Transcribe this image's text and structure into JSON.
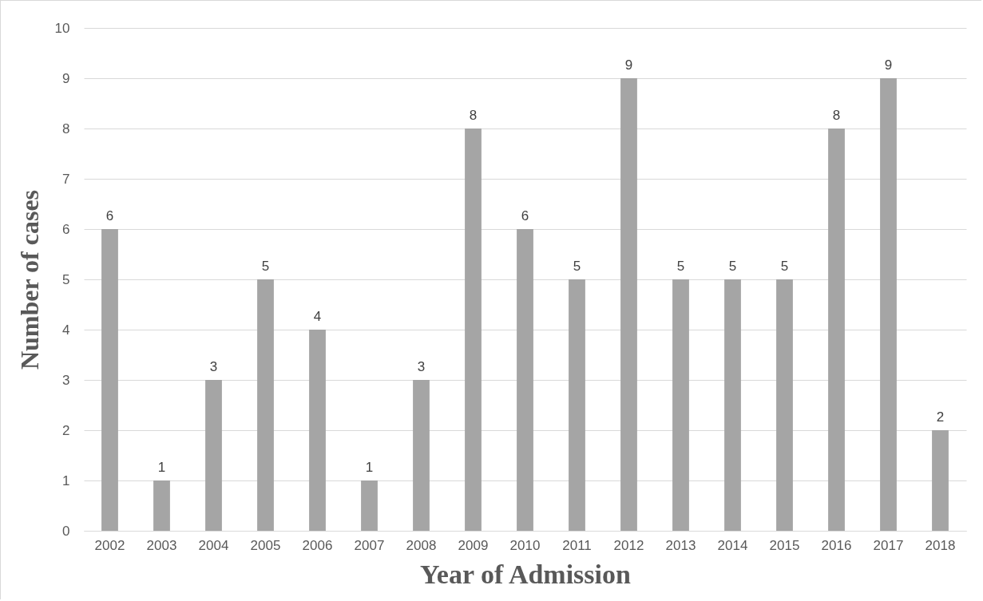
{
  "chart_data": {
    "type": "bar",
    "xlabel": "Year of Admission",
    "ylabel": "Number of cases",
    "categories": [
      "2002",
      "2003",
      "2004",
      "2005",
      "2006",
      "2007",
      "2008",
      "2009",
      "2010",
      "2011",
      "2012",
      "2013",
      "2014",
      "2015",
      "2016",
      "2017",
      "2018"
    ],
    "values": [
      6,
      1,
      3,
      5,
      4,
      1,
      3,
      8,
      6,
      5,
      9,
      5,
      5,
      5,
      8,
      9,
      2
    ],
    "color": "#a5a5a5",
    "ylim": [
      0,
      10
    ],
    "yticks": [
      0,
      1,
      2,
      3,
      4,
      5,
      6,
      7,
      8,
      9,
      10
    ],
    "grid": "y",
    "data_labels": true
  }
}
